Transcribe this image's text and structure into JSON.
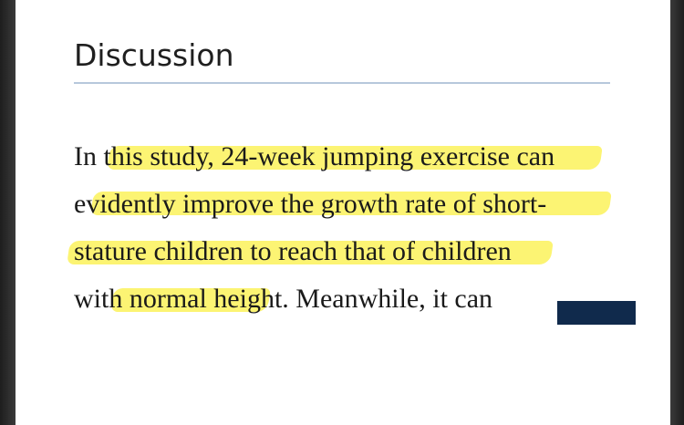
{
  "section": {
    "heading": "Discussion"
  },
  "paragraph": {
    "lines": [
      "In this study, 24-week jumping exercise can",
      "evidently improve the growth rate of short-",
      "stature children to reach that of children",
      "with normal height. Meanwhile, it can"
    ]
  },
  "colors": {
    "highlight": "#fbf25a",
    "rule": "#b7c8dc",
    "overlay_bar": "#102a4c"
  }
}
